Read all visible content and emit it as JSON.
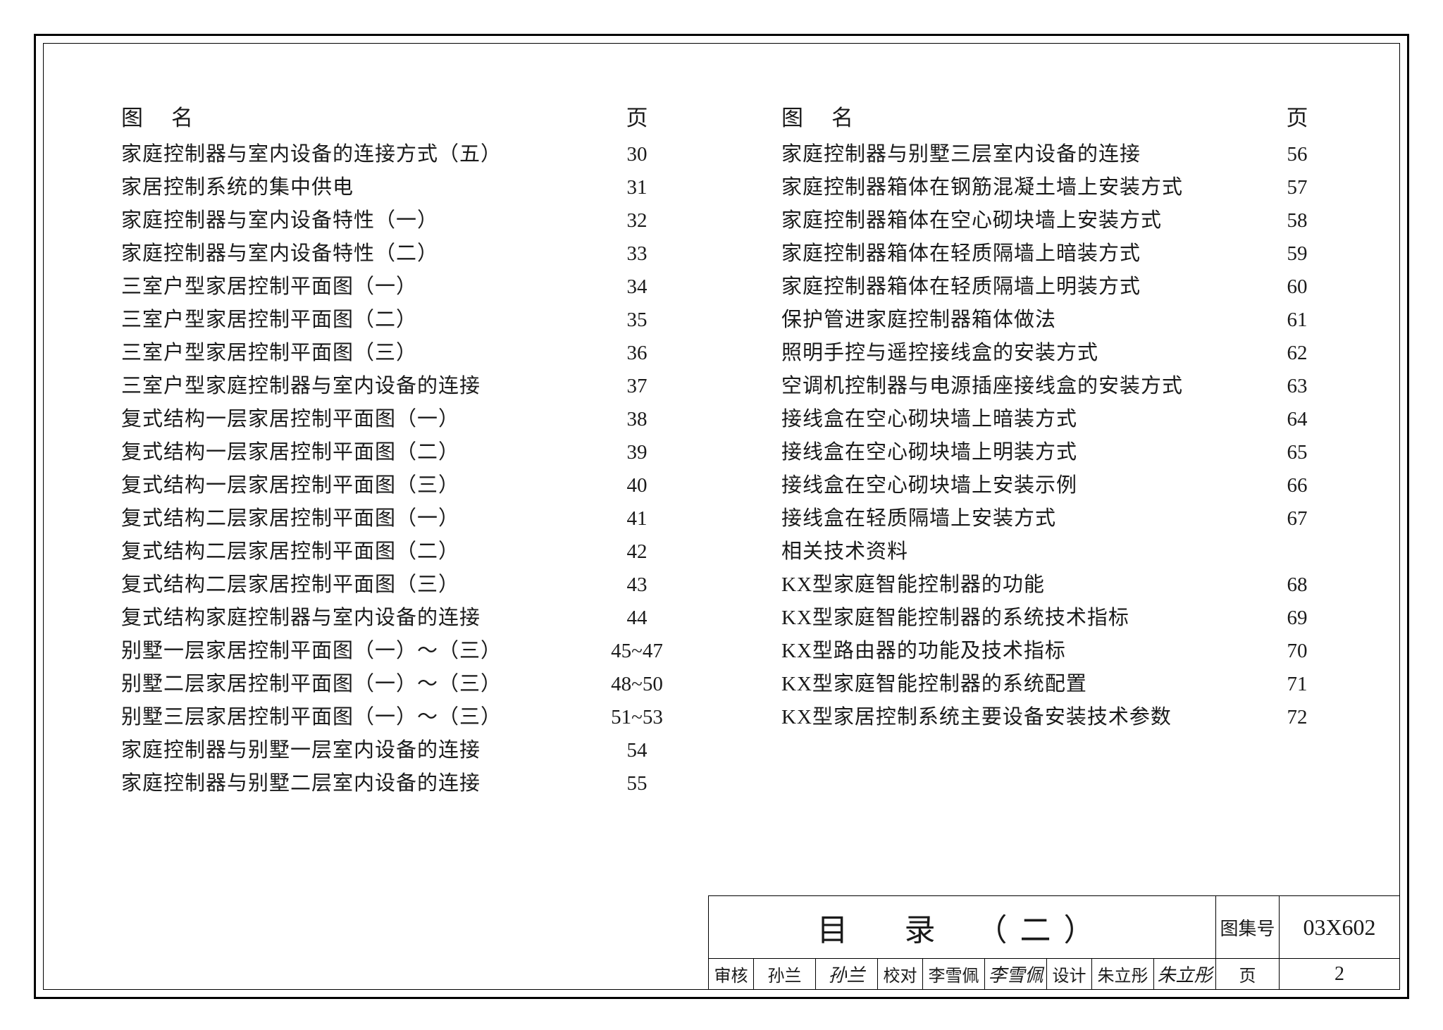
{
  "headers": {
    "name": "图名",
    "page": "页"
  },
  "leftColumn": [
    {
      "name": "家庭控制器与室内设备的连接方式（五）",
      "page": "30"
    },
    {
      "name": "家居控制系统的集中供电",
      "page": "31"
    },
    {
      "name": "家庭控制器与室内设备特性（一）",
      "page": "32"
    },
    {
      "name": "家庭控制器与室内设备特性（二）",
      "page": "33"
    },
    {
      "name": "三室户型家居控制平面图（一）",
      "page": "34"
    },
    {
      "name": "三室户型家居控制平面图（二）",
      "page": "35"
    },
    {
      "name": "三室户型家居控制平面图（三）",
      "page": "36"
    },
    {
      "name": "三室户型家庭控制器与室内设备的连接",
      "page": "37"
    },
    {
      "name": "复式结构一层家居控制平面图（一）",
      "page": "38"
    },
    {
      "name": "复式结构一层家居控制平面图（二）",
      "page": "39"
    },
    {
      "name": "复式结构一层家居控制平面图（三）",
      "page": "40"
    },
    {
      "name": "复式结构二层家居控制平面图（一）",
      "page": "41"
    },
    {
      "name": "复式结构二层家居控制平面图（二）",
      "page": "42"
    },
    {
      "name": "复式结构二层家居控制平面图（三）",
      "page": "43"
    },
    {
      "name": "复式结构家庭控制器与室内设备的连接",
      "page": "44"
    },
    {
      "name": "别墅一层家居控制平面图（一）～（三）",
      "page": "45~47"
    },
    {
      "name": "别墅二层家居控制平面图（一）～（三）",
      "page": "48~50"
    },
    {
      "name": "别墅三层家居控制平面图（一）～（三）",
      "page": "51~53"
    },
    {
      "name": "家庭控制器与别墅一层室内设备的连接",
      "page": "54"
    },
    {
      "name": "家庭控制器与别墅二层室内设备的连接",
      "page": "55"
    }
  ],
  "rightColumn": [
    {
      "name": "家庭控制器与别墅三层室内设备的连接",
      "page": "56"
    },
    {
      "name": "家庭控制器箱体在钢筋混凝土墙上安装方式",
      "page": "57"
    },
    {
      "name": "家庭控制器箱体在空心砌块墙上安装方式",
      "page": "58"
    },
    {
      "name": "家庭控制器箱体在轻质隔墙上暗装方式",
      "page": "59"
    },
    {
      "name": "家庭控制器箱体在轻质隔墙上明装方式",
      "page": "60"
    },
    {
      "name": "保护管进家庭控制器箱体做法",
      "page": "61"
    },
    {
      "name": "照明手控与遥控接线盒的安装方式",
      "page": "62"
    },
    {
      "name": "空调机控制器与电源插座接线盒的安装方式",
      "page": "63"
    },
    {
      "name": "接线盒在空心砌块墙上暗装方式",
      "page": "64"
    },
    {
      "name": "接线盒在空心砌块墙上明装方式",
      "page": "65"
    },
    {
      "name": "接线盒在空心砌块墙上安装示例",
      "page": "66"
    },
    {
      "name": "接线盒在轻质隔墙上安装方式",
      "page": "67"
    },
    {
      "name": "相关技术资料",
      "page": "",
      "section": true
    },
    {
      "name": "KX型家庭智能控制器的功能",
      "page": "68"
    },
    {
      "name": "KX型家庭智能控制器的系统技术指标",
      "page": "69"
    },
    {
      "name": "KX型路由器的功能及技术指标",
      "page": "70"
    },
    {
      "name": "KX型家庭智能控制器的系统配置",
      "page": "71"
    },
    {
      "name": "KX型家居控制系统主要设备安装技术参数",
      "page": "72"
    }
  ],
  "titleBlock": {
    "title": "目　录　（二）",
    "setLabel": "图集号",
    "setValue": "03X602",
    "review": {
      "label": "审核",
      "name": "孙兰",
      "sig": "孙兰"
    },
    "check": {
      "label": "校对",
      "name": "李雪佩",
      "sig": "李雪佩"
    },
    "design": {
      "label": "设计",
      "name": "朱立彤",
      "sig": "朱立彤"
    },
    "pageLabel": "页",
    "pageValue": "2"
  }
}
